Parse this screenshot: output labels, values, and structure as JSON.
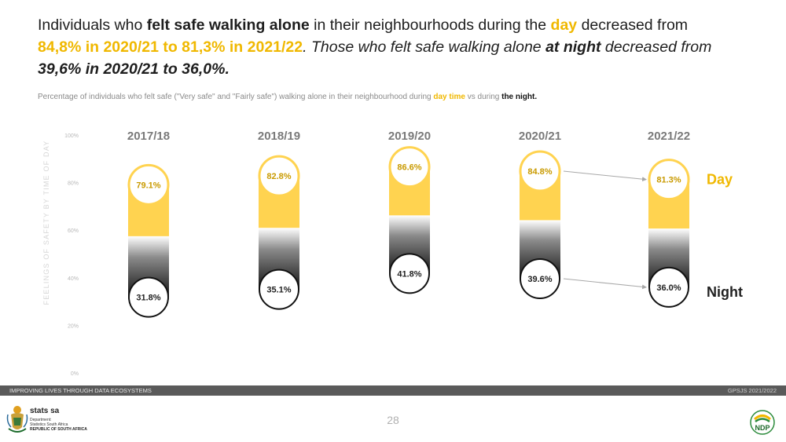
{
  "headline": {
    "part1": "Individuals who ",
    "part2_bold": "felt safe walking alone",
    "part3": " in their neighbourhoods during the ",
    "part4_day": "day",
    "part5": " decreased from ",
    "part6_values": "84,8% in 2020/21 to 81,3% in 2021/22",
    "part7": ". Those who felt safe walking alone ",
    "part8_bold": "at night",
    "part9": "  decreased from ",
    "part10_values": "39,6% in 2020/21 to 36,0%."
  },
  "subtitle": {
    "part1": "Percentage  of individuals who felt safe (\"Very safe\" and \"Fairly safe\") walking alone in their neighbourhood during ",
    "day_label": "day time",
    "part2": " vs during ",
    "night_label": "the night."
  },
  "chart_data": {
    "type": "bar",
    "title": "",
    "ylabel": "FEELINGS OF SAFETY BY TIME OF DAY",
    "xlabel": "",
    "ylim": [
      0,
      100
    ],
    "yticks": [
      "100%",
      "80%",
      "60%",
      "40%",
      "20%",
      "0%"
    ],
    "categories": [
      "2017/18",
      "2018/19",
      "2019/20",
      "2020/21",
      "2021/22"
    ],
    "series": [
      {
        "name": "Day",
        "values": [
          79.1,
          82.8,
          86.6,
          84.8,
          81.3
        ],
        "labels": [
          "79.1%",
          "82.8%",
          "86.6%",
          "84.8%",
          "81.3%"
        ],
        "color": "#ffd350"
      },
      {
        "name": "Night",
        "values": [
          31.8,
          35.1,
          41.8,
          39.6,
          36.0
        ],
        "labels": [
          "31.8%",
          "35.1%",
          "41.8%",
          "39.6%",
          "36.0%"
        ],
        "color": "#2a2a2a"
      }
    ],
    "legend": [
      "Day",
      "Night"
    ],
    "annotations": [
      {
        "from": "2020/21",
        "to": "2021/22",
        "series": "Day"
      },
      {
        "from": "2020/21",
        "to": "2021/22",
        "series": "Night"
      }
    ]
  },
  "footer": {
    "left": "IMPROVING LIVES THROUGH DATA ECOSYSTEMS",
    "right": "GPSJS 2021/2022",
    "page": "28"
  },
  "org": {
    "name": "stats sa",
    "line1": "Department:",
    "line2": "Statistics South Africa",
    "line3": "REPUBLIC OF SOUTH AFRICA"
  },
  "ndp_logo": {
    "text": "NDP"
  }
}
